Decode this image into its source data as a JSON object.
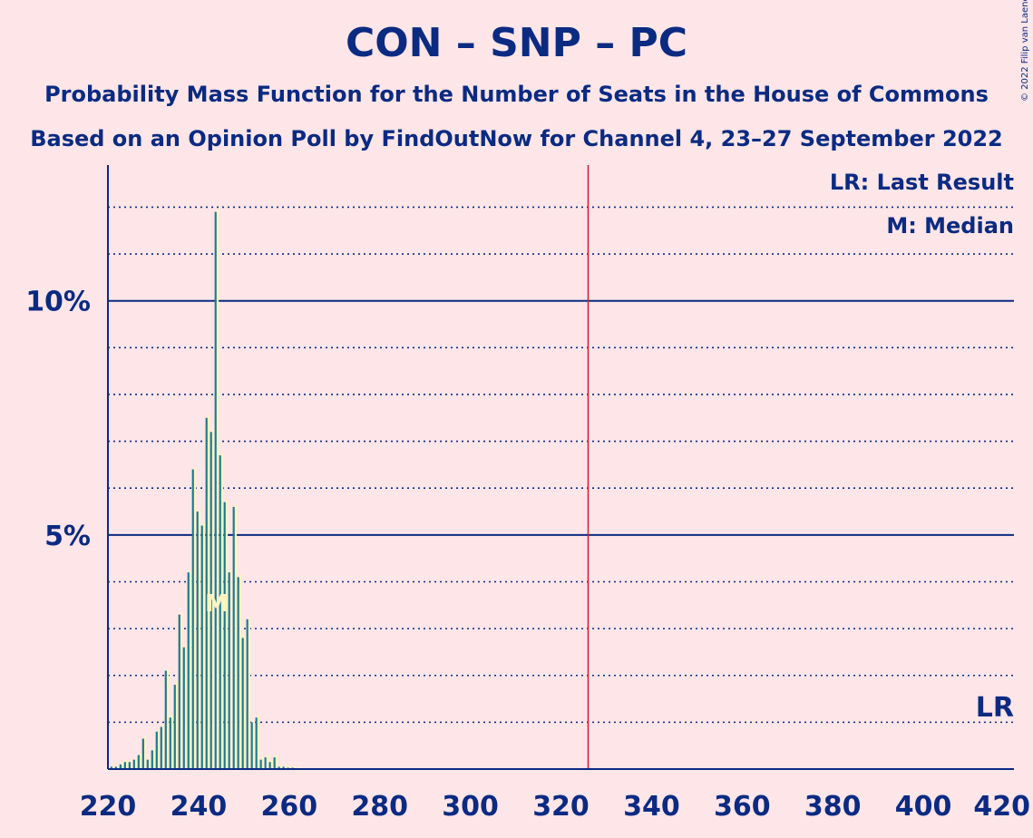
{
  "title": "CON – SNP – PC",
  "subtitle": "Probability Mass Function for the Number of Seats in the House of Commons",
  "subtitle2": "Based on an Opinion Poll by FindOutNow for Channel 4, 23–27 September 2022",
  "copyright": "© 2022 Filip van Laenen",
  "legend": {
    "last_result": "LR: Last Result",
    "median": "M: Median"
  },
  "markers": {
    "last_result_label": "LR",
    "median_label": "M"
  },
  "colors": {
    "background": "#fde5e8",
    "axis": "#0b2a82",
    "bar_dark": "#1a7a8e",
    "bar_light": "#fff3c0",
    "majority_line": "#cc1f2e"
  },
  "chart_data": {
    "type": "bar",
    "xlim": [
      220,
      420
    ],
    "ylim": [
      0,
      12.9
    ],
    "x_ticks": [
      220,
      240,
      260,
      280,
      300,
      320,
      340,
      360,
      380,
      400,
      420
    ],
    "y_ticks": [
      {
        "value": 5,
        "label": "5%"
      },
      {
        "value": 10,
        "label": "10%"
      }
    ],
    "majority_line": 326,
    "last_result": 420,
    "median": 244,
    "x": [
      221,
      222,
      223,
      224,
      225,
      226,
      227,
      228,
      229,
      230,
      231,
      232,
      233,
      234,
      235,
      236,
      237,
      238,
      239,
      240,
      241,
      242,
      243,
      244,
      245,
      246,
      247,
      248,
      249,
      250,
      251,
      252,
      253,
      254,
      255,
      256,
      257,
      258,
      259,
      260,
      261,
      262
    ],
    "values": [
      0.05,
      0.05,
      0.1,
      0.15,
      0.15,
      0.2,
      0.3,
      0.65,
      0.2,
      0.4,
      0.8,
      0.9,
      2.1,
      1.1,
      1.8,
      3.3,
      2.6,
      4.2,
      6.4,
      5.5,
      5.2,
      7.5,
      7.2,
      11.9,
      6.7,
      5.7,
      4.2,
      5.6,
      4.1,
      2.8,
      3.2,
      1.0,
      1.1,
      0.2,
      0.25,
      0.15,
      0.25,
      0.05,
      0.05,
      0.03,
      0.03,
      0.02
    ]
  }
}
